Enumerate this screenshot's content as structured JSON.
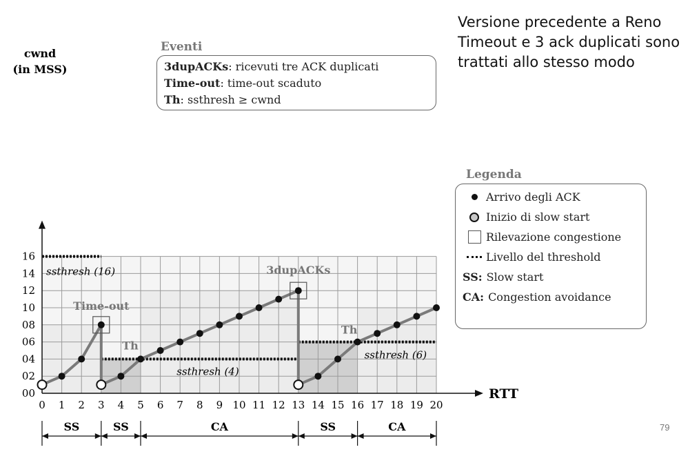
{
  "note": {
    "lines": [
      "Versione precedente a Reno",
      "Timeout e 3 ack duplicati sono",
      "trattati allo stesso modo"
    ]
  },
  "slide_number": "79",
  "events": {
    "title": "Eventi",
    "items": [
      {
        "term": "3dupACKs",
        "text": ": ricevuti tre ACK duplicati"
      },
      {
        "term": "Time-out",
        "text": ": time-out scaduto"
      },
      {
        "term": "Th",
        "text": ": ssthresh ≥ cwnd"
      }
    ]
  },
  "legend": {
    "title": "Legenda",
    "items": [
      {
        "icon": "ack-dot",
        "text": "Arrivo degli ACK"
      },
      {
        "icon": "slow-start-circle",
        "text": "Inizio di slow start"
      },
      {
        "icon": "congestion-square",
        "text": "Rilevazione congestione"
      },
      {
        "icon": "threshold-dash",
        "text": "Livello del threshold"
      },
      {
        "abbr": "SS:",
        "text": "Slow start"
      },
      {
        "abbr": "CA:",
        "text": "Congestion avoidance"
      }
    ]
  },
  "chart_data": {
    "type": "line",
    "ylabel": [
      "cwnd",
      "(in MSS)"
    ],
    "xlabel": "RTT",
    "xlim": [
      0,
      20
    ],
    "ylim": [
      0,
      16
    ],
    "x_ticks": [
      "0",
      "1",
      "2",
      "3",
      "4",
      "5",
      "6",
      "7",
      "8",
      "9",
      "10",
      "11",
      "12",
      "13",
      "14",
      "15",
      "16",
      "17",
      "18",
      "19",
      "20"
    ],
    "y_ticks": [
      "00",
      "02",
      "04",
      "06",
      "08",
      "10",
      "12",
      "14",
      "16"
    ],
    "grid": true,
    "cwnd_points": [
      [
        0,
        1
      ],
      [
        1,
        2
      ],
      [
        2,
        4
      ],
      [
        3,
        8
      ],
      [
        3,
        1
      ],
      [
        4,
        2
      ],
      [
        5,
        4
      ],
      [
        6,
        5
      ],
      [
        7,
        6
      ],
      [
        8,
        7
      ],
      [
        9,
        8
      ],
      [
        10,
        9
      ],
      [
        11,
        10
      ],
      [
        12,
        11
      ],
      [
        13,
        12
      ],
      [
        13,
        1
      ],
      [
        14,
        2
      ],
      [
        15,
        4
      ],
      [
        16,
        6
      ],
      [
        17,
        7
      ],
      [
        18,
        8
      ],
      [
        19,
        9
      ],
      [
        20,
        10
      ]
    ],
    "ack_points": [
      [
        1,
        2
      ],
      [
        2,
        4
      ],
      [
        3,
        8
      ],
      [
        4,
        2
      ],
      [
        5,
        4
      ],
      [
        6,
        5
      ],
      [
        7,
        6
      ],
      [
        8,
        7
      ],
      [
        9,
        8
      ],
      [
        10,
        9
      ],
      [
        11,
        10
      ],
      [
        12,
        11
      ],
      [
        13,
        12
      ],
      [
        14,
        2
      ],
      [
        15,
        4
      ],
      [
        16,
        6
      ],
      [
        17,
        7
      ],
      [
        18,
        8
      ],
      [
        19,
        9
      ],
      [
        20,
        10
      ]
    ],
    "slow_start_points": [
      [
        0,
        1
      ],
      [
        3,
        1
      ],
      [
        13,
        1
      ]
    ],
    "congestion_points": [
      [
        3,
        8
      ],
      [
        13,
        12
      ]
    ],
    "thresholds": [
      {
        "x": [
          0,
          3
        ],
        "y": 16,
        "label": "ssthresh (16)"
      },
      {
        "x": [
          3,
          13
        ],
        "y": 4,
        "label": "ssthresh (4)"
      },
      {
        "x": [
          13,
          20
        ],
        "y": 6,
        "label": "ssthresh (6)"
      }
    ],
    "annotations": [
      {
        "text": "Time-out",
        "x": 3,
        "y": 8
      },
      {
        "text": "3dupACKs",
        "x": 13,
        "y": 12
      },
      {
        "text": "Th",
        "x": 5,
        "y": 4
      },
      {
        "text": "Th",
        "x": 16,
        "y": 6
      }
    ],
    "phases": [
      {
        "label": "SS",
        "from": 0,
        "to": 3
      },
      {
        "label": "SS",
        "from": 3,
        "to": 5
      },
      {
        "label": "CA",
        "from": 5,
        "to": 13
      },
      {
        "label": "SS",
        "from": 13,
        "to": 16
      },
      {
        "label": "CA",
        "from": 16,
        "to": 20
      }
    ],
    "colors": {
      "line": "#7a7a7a",
      "light_fill": "#ececec",
      "dark_fill": "#d0d0d0",
      "grid": "#9a9a9a"
    }
  }
}
